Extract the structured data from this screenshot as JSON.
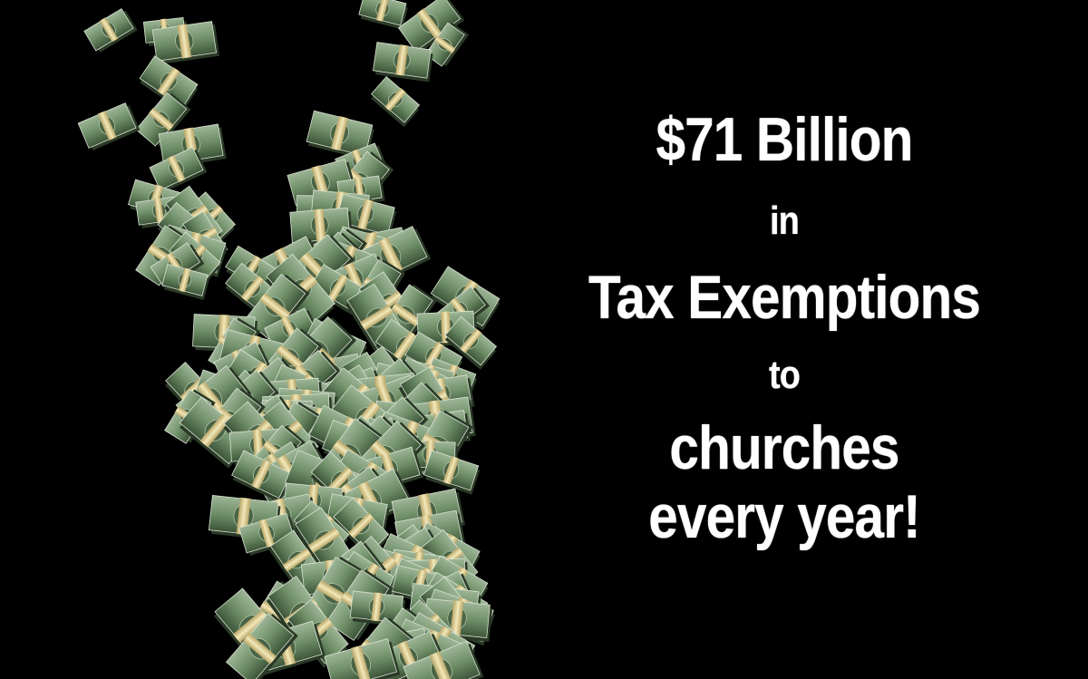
{
  "image": {
    "background_color": "#000000",
    "illustration": "tornado-of-cash-bundles",
    "bill_color": "#5f7f57",
    "band_color": "#e8d9a0"
  },
  "headline": {
    "line1": "$71 Billion",
    "line2": "in",
    "line3": "Tax Exemptions",
    "line4": "to",
    "line5": "churches",
    "line6": "every year!",
    "text_color": "#ffffff"
  }
}
